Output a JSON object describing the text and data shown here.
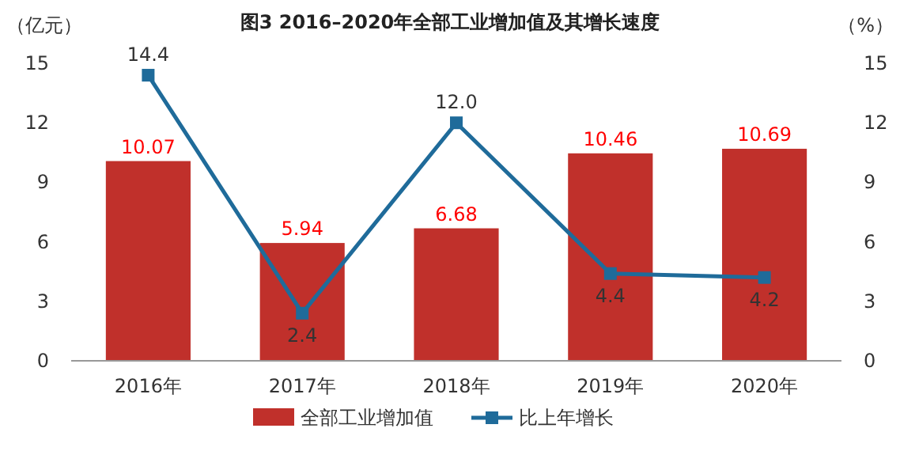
{
  "chart_data": {
    "type": "bar",
    "title": "图3  2016–2020年全部工业增加值及其增长速度",
    "ylabel": "（亿元）",
    "y2label": "（%）",
    "categories": [
      "2016年",
      "2017年",
      "2018年",
      "2019年",
      "2020年"
    ],
    "series": [
      {
        "name": "全部工业增加值",
        "color": "#c0302b",
        "values": [
          10.07,
          5.94,
          6.68,
          10.46,
          10.69
        ],
        "data_labels": true
      },
      {
        "name": "比上年增长",
        "type": "line",
        "axis": "y2",
        "color": "#1f6b9a",
        "marker": "square",
        "values": [
          14.4,
          2.4,
          12.0,
          4.4,
          4.2
        ],
        "value_labels": [
          "14.4",
          "2.4",
          "12.0",
          "4.4",
          "4.2"
        ]
      }
    ],
    "ylim": [
      0,
      15
    ],
    "yticks": [
      0,
      3,
      6,
      9,
      12,
      15
    ],
    "y2lim": [
      0,
      15
    ],
    "y2ticks": [
      0,
      3,
      6,
      9,
      12,
      15
    ],
    "legend": "bottom",
    "grid": false
  }
}
